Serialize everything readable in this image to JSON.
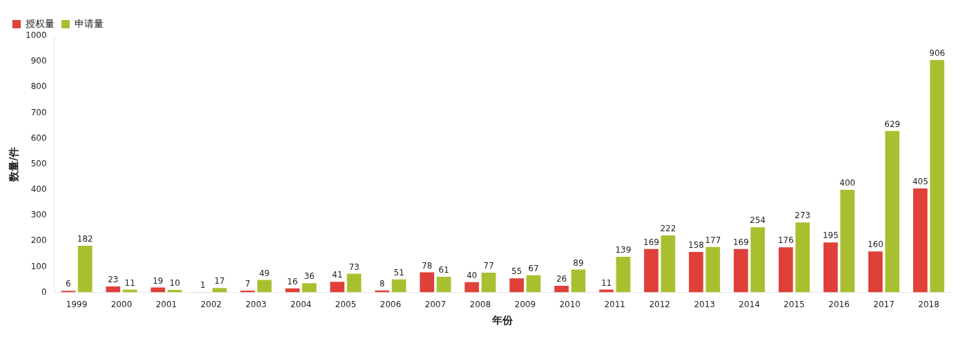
{
  "chart_data": {
    "type": "bar",
    "xlabel": "年份",
    "ylabel": "数量/件",
    "categories": [
      "1999",
      "2000",
      "2001",
      "2002",
      "2003",
      "2004",
      "2005",
      "2006",
      "2007",
      "2008",
      "2009",
      "2010",
      "2011",
      "2012",
      "2013",
      "2014",
      "2015",
      "2016",
      "2017",
      "2018"
    ],
    "series": [
      {
        "name": "授权量",
        "color": "#e0403a",
        "values": [
          6,
          23,
          19,
          1,
          7,
          16,
          41,
          8,
          78,
          40,
          55,
          26,
          11,
          169,
          158,
          169,
          176,
          195,
          160,
          405
        ]
      },
      {
        "name": "申请量",
        "color": "#a8c030",
        "values": [
          182,
          11,
          10,
          17,
          49,
          36,
          73,
          51,
          61,
          77,
          67,
          89,
          139,
          222,
          177,
          254,
          273,
          400,
          629,
          906
        ]
      }
    ],
    "ylim": [
      0,
      1000
    ],
    "yticks": [
      0,
      100,
      200,
      300,
      400,
      500,
      600,
      700,
      800,
      900,
      1000
    ],
    "grid": false,
    "legend": "top left",
    "data_labels": true
  }
}
